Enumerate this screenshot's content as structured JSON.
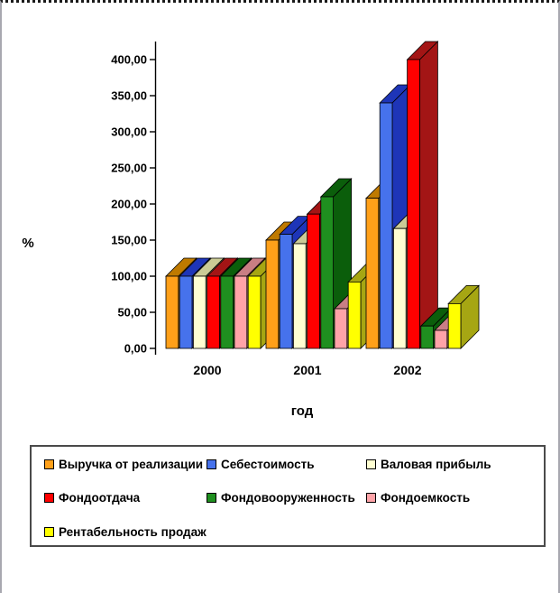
{
  "frame": {
    "background": "#FFFFFF"
  },
  "chart_data": {
    "type": "bar",
    "projection": "3d-clustered",
    "title": "",
    "xlabel": "год",
    "ylabel": "%",
    "categories": [
      "2000",
      "2001",
      "2002"
    ],
    "series": [
      {
        "name": "Выручка от реализации",
        "color": "#FFA019",
        "dark": "#BF7A00",
        "values": [
          100,
          150,
          208
        ]
      },
      {
        "name": "Себестоимость",
        "color": "#4672EC",
        "dark": "#1E35B8",
        "values": [
          100,
          158,
          340
        ]
      },
      {
        "name": "Валовая прибыль",
        "color": "#FFFFD2",
        "dark": "#CBCB96",
        "values": [
          100,
          145,
          166
        ]
      },
      {
        "name": "Фондоотдача",
        "color": "#FF0000",
        "dark": "#A31515",
        "values": [
          100,
          186,
          400
        ]
      },
      {
        "name": "Фондовооруженность",
        "color": "#1F8F1F",
        "dark": "#0B5E0B",
        "values": [
          100,
          210,
          31
        ]
      },
      {
        "name": "Фондоемкость",
        "color": "#FFA3A8",
        "dark": "#C97E84",
        "values": [
          100,
          55,
          25
        ]
      },
      {
        "name": "Рентабельность продаж",
        "color": "#FFFF00",
        "dark": "#A6A613",
        "values": [
          100,
          92,
          62
        ]
      }
    ],
    "ylim": [
      0,
      400
    ],
    "ytick_step": 50,
    "ytick_labels": [
      "0,00",
      "50,00",
      "100,00",
      "150,00",
      "200,00",
      "250,00",
      "300,00",
      "350,00",
      "400,00"
    ],
    "grid": false,
    "legend_position": "bottom-box"
  }
}
